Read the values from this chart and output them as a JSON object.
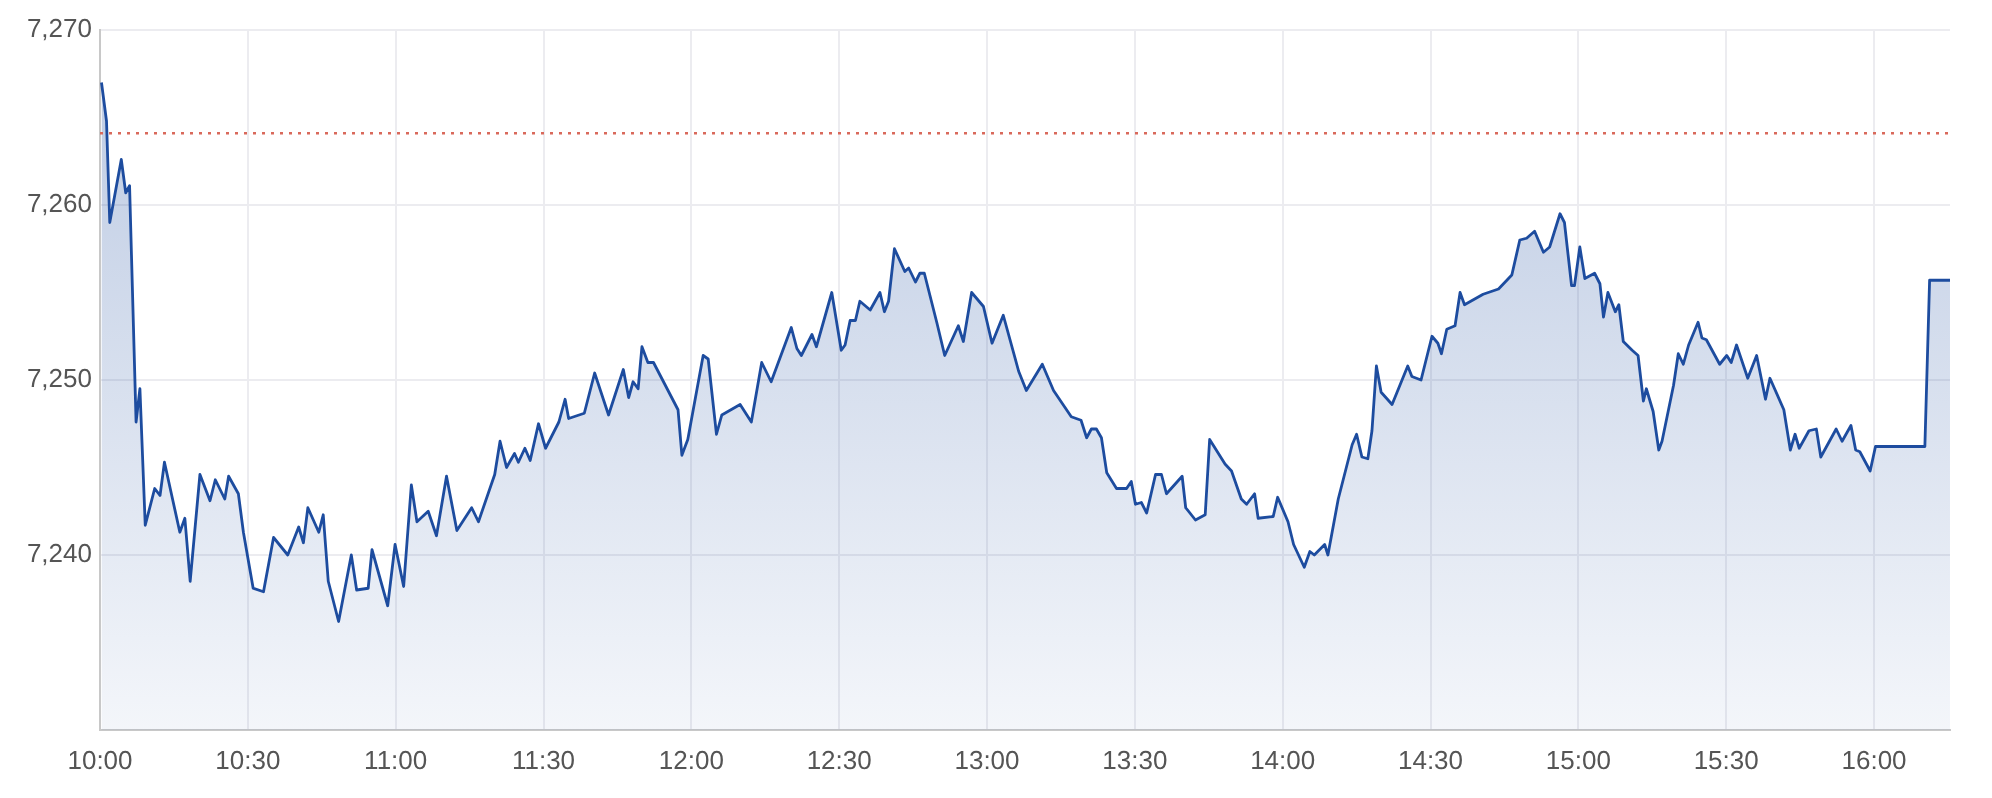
{
  "chart_data": {
    "type": "area",
    "x": [
      10.005,
      10.022,
      10.033,
      10.072,
      10.087,
      10.1,
      10.122,
      10.135,
      10.153,
      10.185,
      10.203,
      10.218,
      10.27,
      10.287,
      10.305,
      10.338,
      10.372,
      10.39,
      10.422,
      10.435,
      10.468,
      10.485,
      10.518,
      10.553,
      10.587,
      10.635,
      10.672,
      10.688,
      10.703,
      10.74,
      10.755,
      10.772,
      10.807,
      10.85,
      10.868,
      10.907,
      10.92,
      10.973,
      10.998,
      11.027,
      11.053,
      11.072,
      11.11,
      11.138,
      11.172,
      11.207,
      11.257,
      11.28,
      11.335,
      11.353,
      11.375,
      11.402,
      11.415,
      11.437,
      11.455,
      11.483,
      11.507,
      11.552,
      11.573,
      11.585,
      11.638,
      11.673,
      11.72,
      11.77,
      11.788,
      11.803,
      11.82,
      11.833,
      11.853,
      11.872,
      11.955,
      11.968,
      11.988,
      12.04,
      12.057,
      12.085,
      12.103,
      12.165,
      12.203,
      12.238,
      12.27,
      12.338,
      12.357,
      12.372,
      12.408,
      12.423,
      12.475,
      12.507,
      12.52,
      12.537,
      12.555,
      12.57,
      12.605,
      12.638,
      12.653,
      12.667,
      12.687,
      12.722,
      12.735,
      12.758,
      12.773,
      12.788,
      12.83,
      12.857,
      12.903,
      12.92,
      12.948,
      12.988,
      13.017,
      13.055,
      13.107,
      13.133,
      13.187,
      13.225,
      13.285,
      13.318,
      13.337,
      13.353,
      13.37,
      13.387,
      13.405,
      13.438,
      13.472,
      13.488,
      13.502,
      13.522,
      13.54,
      13.57,
      13.59,
      13.607,
      13.66,
      13.672,
      13.705,
      13.738,
      13.753,
      13.805,
      13.827,
      13.86,
      13.878,
      13.905,
      13.917,
      13.968,
      13.983,
      14.018,
      14.037,
      14.073,
      14.092,
      14.107,
      14.142,
      14.153,
      14.188,
      14.235,
      14.25,
      14.268,
      14.288,
      14.302,
      14.317,
      14.333,
      14.37,
      14.423,
      14.437,
      14.468,
      14.505,
      14.525,
      14.537,
      14.555,
      14.583,
      14.6,
      14.615,
      14.678,
      14.73,
      14.775,
      14.802,
      14.825,
      14.852,
      14.882,
      14.903,
      14.938,
      14.953,
      14.977,
      14.987,
      15.005,
      15.022,
      15.055,
      15.073,
      15.085,
      15.1,
      15.125,
      15.137,
      15.152,
      15.182,
      15.202,
      15.22,
      15.23,
      15.253,
      15.272,
      15.283,
      15.322,
      15.338,
      15.355,
      15.373,
      15.405,
      15.418,
      15.433,
      15.478,
      15.502,
      15.517,
      15.535,
      15.573,
      15.603,
      15.633,
      15.648,
      15.695,
      15.717,
      15.733,
      15.747,
      15.78,
      15.805,
      15.82,
      15.872,
      15.892,
      15.922,
      15.938,
      15.952,
      15.987,
      16.005,
      16.172,
      16.188,
      16.257
    ],
    "series": [
      {
        "color": "#1d4c9f",
        "values": [
          7267.0,
          7264.8,
          7259.0,
          7262.6,
          7260.7,
          7261.1,
          7247.6,
          7249.5,
          7241.7,
          7243.8,
          7243.4,
          7245.3,
          7241.3,
          7242.1,
          7238.5,
          7244.6,
          7243.1,
          7244.3,
          7243.2,
          7244.5,
          7243.5,
          7241.3,
          7238.1,
          7237.9,
          7241.0,
          7240.0,
          7241.6,
          7240.7,
          7242.7,
          7241.3,
          7242.3,
          7238.5,
          7236.2,
          7240.0,
          7238.0,
          7238.1,
          7240.3,
          7237.1,
          7240.6,
          7238.2,
          7244.0,
          7241.9,
          7242.5,
          7241.1,
          7244.5,
          7241.4,
          7242.7,
          7241.9,
          7244.6,
          7246.5,
          7245.0,
          7245.8,
          7245.3,
          7246.1,
          7245.4,
          7247.5,
          7246.1,
          7247.6,
          7248.9,
          7247.8,
          7248.1,
          7250.4,
          7248.0,
          7250.6,
          7249.0,
          7249.9,
          7249.5,
          7251.9,
          7251.0,
          7251.0,
          7248.3,
          7245.7,
          7246.6,
          7251.4,
          7251.2,
          7246.9,
          7248.0,
          7248.6,
          7247.6,
          7251.0,
          7249.9,
          7253.0,
          7251.8,
          7251.4,
          7252.6,
          7251.9,
          7255.0,
          7251.7,
          7252.0,
          7253.4,
          7253.4,
          7254.5,
          7254.0,
          7255.0,
          7253.9,
          7254.5,
          7257.5,
          7256.2,
          7256.4,
          7255.6,
          7256.1,
          7256.1,
          7253.3,
          7251.4,
          7253.1,
          7252.2,
          7255.0,
          7254.2,
          7252.1,
          7253.7,
          7250.5,
          7249.4,
          7250.9,
          7249.4,
          7247.9,
          7247.7,
          7246.7,
          7247.2,
          7247.2,
          7246.7,
          7244.7,
          7243.8,
          7243.8,
          7244.2,
          7242.9,
          7243.0,
          7242.4,
          7244.6,
          7244.6,
          7243.5,
          7244.5,
          7242.7,
          7242.0,
          7242.3,
          7246.6,
          7245.2,
          7244.8,
          7243.2,
          7242.9,
          7243.5,
          7242.1,
          7242.2,
          7243.3,
          7241.9,
          7240.6,
          7239.3,
          7240.2,
          7240.0,
          7240.6,
          7240.0,
          7243.2,
          7246.3,
          7246.9,
          7245.6,
          7245.5,
          7247.1,
          7250.8,
          7249.3,
          7248.6,
          7250.8,
          7250.2,
          7250.0,
          7252.5,
          7252.1,
          7251.5,
          7252.9,
          7253.1,
          7255.0,
          7254.3,
          7254.9,
          7255.2,
          7256.0,
          7258.0,
          7258.1,
          7258.5,
          7257.3,
          7257.6,
          7259.5,
          7259.0,
          7255.4,
          7255.4,
          7257.6,
          7255.8,
          7256.1,
          7255.5,
          7253.6,
          7255.0,
          7253.9,
          7254.3,
          7252.2,
          7251.7,
          7251.4,
          7248.8,
          7249.5,
          7248.2,
          7246.0,
          7246.5,
          7249.7,
          7251.5,
          7250.9,
          7252.0,
          7253.3,
          7252.4,
          7252.3,
          7250.9,
          7251.4,
          7251.0,
          7252.0,
          7250.1,
          7251.4,
          7248.9,
          7250.1,
          7248.3,
          7246.0,
          7246.9,
          7246.1,
          7247.1,
          7247.2,
          7245.6,
          7247.2,
          7246.5,
          7247.4,
          7246.0,
          7245.9,
          7244.8,
          7246.2,
          7246.2,
          7255.7,
          7255.7
        ]
      }
    ],
    "xlim": [
      10,
      16.257
    ],
    "xticks": [
      {
        "value": 10,
        "label": "10:00"
      },
      {
        "value": 10.5,
        "label": "10:30"
      },
      {
        "value": 11,
        "label": "11:00"
      },
      {
        "value": 11.5,
        "label": "11:30"
      },
      {
        "value": 12,
        "label": "12:00"
      },
      {
        "value": 12.5,
        "label": "12:30"
      },
      {
        "value": 13,
        "label": "13:00"
      },
      {
        "value": 13.5,
        "label": "13:30"
      },
      {
        "value": 14,
        "label": "14:00"
      },
      {
        "value": 14.5,
        "label": "14:30"
      },
      {
        "value": 15,
        "label": "15:00"
      },
      {
        "value": 15.5,
        "label": "15:30"
      },
      {
        "value": 16,
        "label": "16:00"
      }
    ],
    "ylim": [
      7230,
      7270
    ],
    "yticks": [
      {
        "value": 7240,
        "label": "7,240"
      },
      {
        "value": 7250,
        "label": "7,250"
      },
      {
        "value": 7260,
        "label": "7,260"
      },
      {
        "value": 7270,
        "label": "7,270"
      }
    ],
    "ref_lines": [
      {
        "axis": "y",
        "value": 7264.1,
        "color": "#d9695b",
        "line_style": "dotted"
      }
    ],
    "grid": true
  }
}
